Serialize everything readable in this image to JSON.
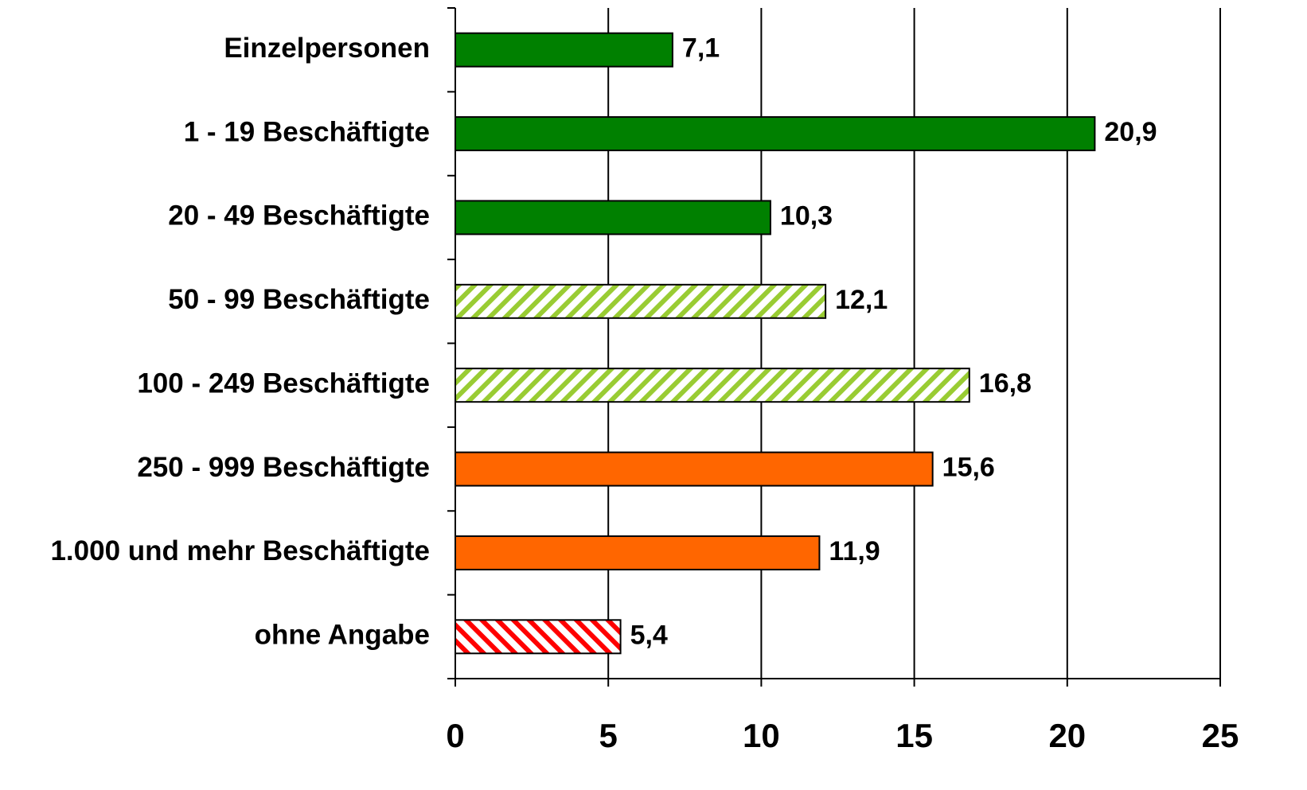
{
  "chart_data": {
    "type": "bar",
    "orientation": "horizontal",
    "categories": [
      "Einzelpersonen",
      "1 - 19 Beschäftigte",
      "20 - 49 Beschäftigte",
      "50 - 99 Beschäftigte",
      "100 - 249 Beschäftigte",
      "250 - 999 Beschäftigte",
      "1.000 und mehr Beschäftigte",
      "ohne Angabe"
    ],
    "values": [
      7.1,
      20.9,
      10.3,
      12.1,
      16.8,
      15.6,
      11.9,
      5.4
    ],
    "value_labels": [
      "7,1",
      "20,9",
      "10,3",
      "12,1",
      "16,8",
      "15,6",
      "11,9",
      "5,4"
    ],
    "colors": [
      "#008000",
      "#008000",
      "#008000",
      "#99cc33",
      "#99cc33",
      "#ff6600",
      "#ff6600",
      "#ff0000"
    ],
    "fill_styles": [
      "solid",
      "solid",
      "solid",
      "hatch-forward",
      "hatch-forward",
      "solid",
      "solid",
      "hatch-backward"
    ],
    "xlim": [
      0,
      25
    ],
    "xticks": [
      0,
      5,
      10,
      15,
      20,
      25
    ],
    "grid": true
  }
}
